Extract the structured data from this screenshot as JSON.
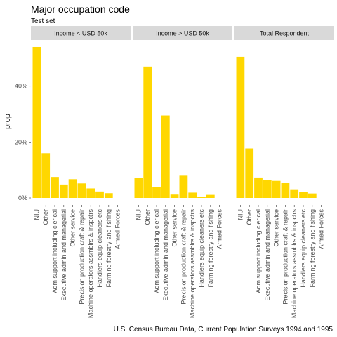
{
  "title": "Major occupation code",
  "subtitle": "Test set",
  "caption": "U.S. Census Bureau Data, Current Population Surveys 1994 and 1995",
  "colors": {
    "bar": "#FFD700",
    "strip": "#D9D9D9",
    "panel": "#FFFFFF"
  },
  "chart_data": {
    "type": "bar",
    "ylabel": "prop",
    "xlabel": "",
    "ylim": [
      0,
      0.55
    ],
    "y_ticks": [
      0,
      0.2,
      0.4
    ],
    "y_tick_labels": [
      "0%",
      "20%",
      "40%"
    ],
    "grid": false,
    "categories": [
      "NIU",
      "Other",
      "Adm support including clerical",
      "Executive admin and managerial",
      "Other service",
      "Precision production craft & repair",
      "Machine operators assmblrs & inspctrs",
      "Handlers equip cleaners etc",
      "Farming forestry and fishing",
      "Armed Forces"
    ],
    "panels": [
      {
        "name": "Income < USD 50k",
        "values": [
          0.54,
          0.16,
          0.075,
          0.048,
          0.067,
          0.052,
          0.034,
          0.023,
          0.017,
          0.0
        ]
      },
      {
        "name": "Income > USD 50k",
        "values": [
          0.071,
          0.47,
          0.039,
          0.295,
          0.012,
          0.082,
          0.019,
          0.003,
          0.011,
          0.0
        ]
      },
      {
        "name": "Total Respondent",
        "values": [
          0.505,
          0.177,
          0.073,
          0.063,
          0.061,
          0.054,
          0.031,
          0.021,
          0.016,
          0.0
        ]
      }
    ]
  }
}
